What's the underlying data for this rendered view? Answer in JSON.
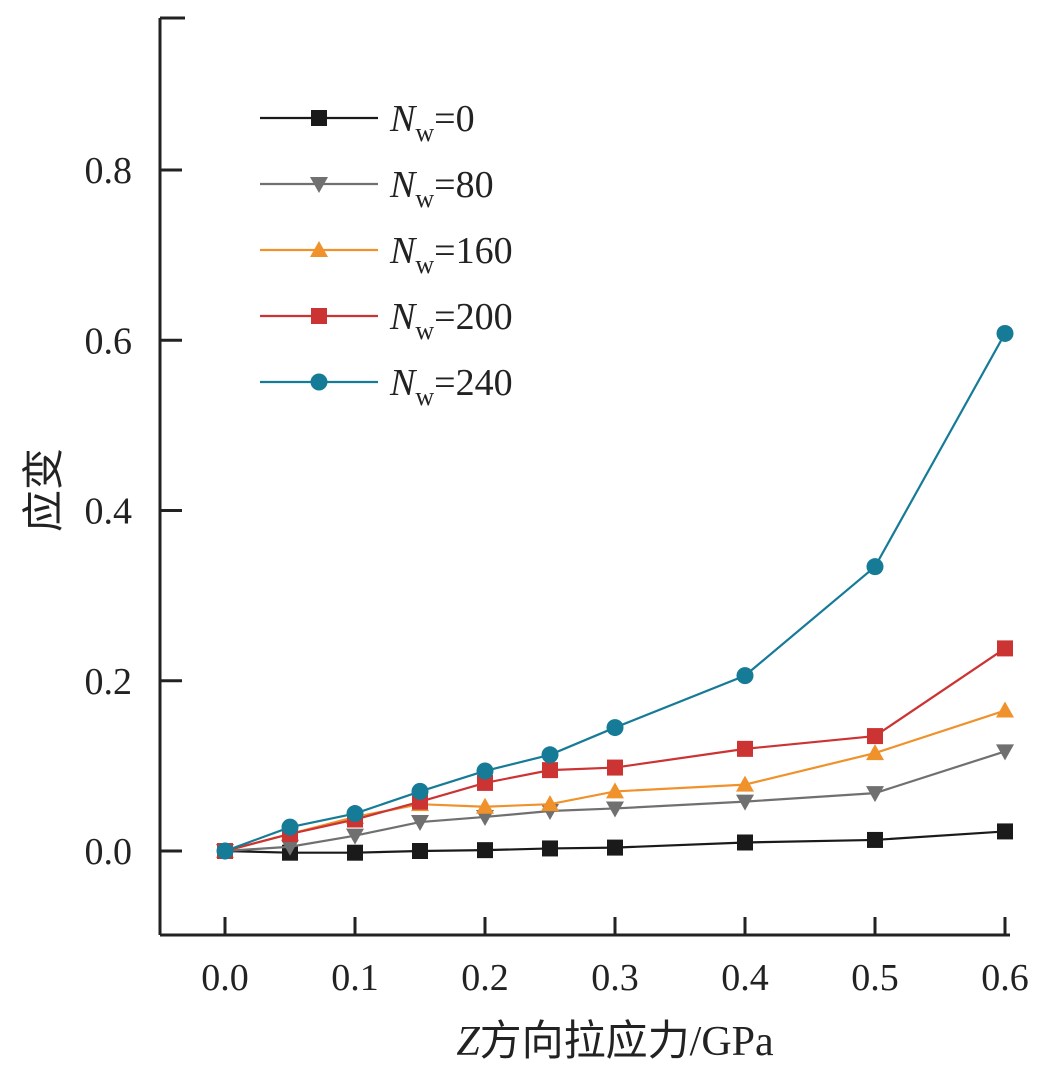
{
  "chart_data": {
    "type": "line",
    "xlabel_italic": "Z",
    "xlabel": "方向拉应力/GPa",
    "ylabel": "应变",
    "xlim": [
      -0.05,
      0.6
    ],
    "ylim": [
      -0.1,
      0.98
    ],
    "xticks": [
      "0.0",
      "0.1",
      "0.2",
      "0.3",
      "0.4",
      "0.5",
      "0.6"
    ],
    "yticks": [
      "0.0",
      "0.2",
      "0.4",
      "0.6",
      "0.8"
    ],
    "legend_position": "top-left",
    "grid": false,
    "x": [
      0.0,
      0.05,
      0.1,
      0.15,
      0.2,
      0.25,
      0.3,
      0.4,
      0.5,
      0.6
    ],
    "series": [
      {
        "name_main": "N",
        "name_sub": "w",
        "name_rest": "=0",
        "color": "#1a1a1a",
        "marker": "square",
        "values": [
          0.0,
          -0.002,
          -0.002,
          0.0,
          0.001,
          0.003,
          0.004,
          0.01,
          0.013,
          0.023
        ]
      },
      {
        "name_main": "N",
        "name_sub": "w",
        "name_rest": "=80",
        "color": "#707070",
        "marker": "triangle-down",
        "values": [
          0.0,
          0.005,
          0.018,
          0.034,
          0.04,
          0.047,
          0.05,
          0.058,
          0.068,
          0.117
        ]
      },
      {
        "name_main": "N",
        "name_sub": "w",
        "name_rest": "=160",
        "color": "#f0922b",
        "marker": "triangle-up",
        "values": [
          0.0,
          0.02,
          0.04,
          0.055,
          0.052,
          0.055,
          0.07,
          0.078,
          0.115,
          0.165
        ]
      },
      {
        "name_main": "N",
        "name_sub": "w",
        "name_rest": "=200",
        "color": "#cc3333",
        "marker": "square",
        "values": [
          0.0,
          0.02,
          0.037,
          0.058,
          0.08,
          0.095,
          0.098,
          0.12,
          0.135,
          0.238
        ]
      },
      {
        "name_main": "N",
        "name_sub": "w",
        "name_rest": "=240",
        "color": "#167b96",
        "marker": "circle",
        "values": [
          0.0,
          0.028,
          0.044,
          0.07,
          0.094,
          0.113,
          0.145,
          0.206,
          0.334,
          0.608
        ]
      }
    ]
  }
}
